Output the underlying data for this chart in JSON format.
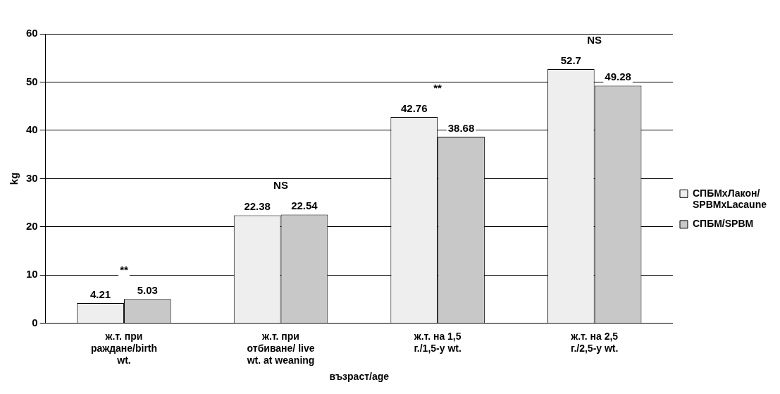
{
  "chart_data": {
    "type": "bar",
    "xlabel": "възраст/age",
    "ylabel": "kg",
    "categories": [
      "ж.т. при раждане/birth wt.",
      "ж.т. при отбиване/ live wt. at weaning",
      "ж.т. на 1,5 г./1,5-y wt.",
      "ж.т. на 2,5 г./2,5-y wt."
    ],
    "series": [
      {
        "name": "СПБМхЛакон/ SPBMxLacaune",
        "color": "#eeeeee",
        "values": [
          4.21,
          22.38,
          42.76,
          52.7
        ]
      },
      {
        "name": "СПБМ/SPBM",
        "color": "#c8c8c8",
        "values": [
          5.03,
          22.54,
          38.68,
          49.28
        ]
      }
    ],
    "ylim": [
      0,
      60
    ],
    "yticks": [
      0,
      10,
      20,
      30,
      40,
      50,
      60
    ],
    "grid": "y",
    "legend": "right",
    "data_labels": true,
    "annotations": [
      "**",
      "NS",
      "**",
      "NS"
    ]
  }
}
